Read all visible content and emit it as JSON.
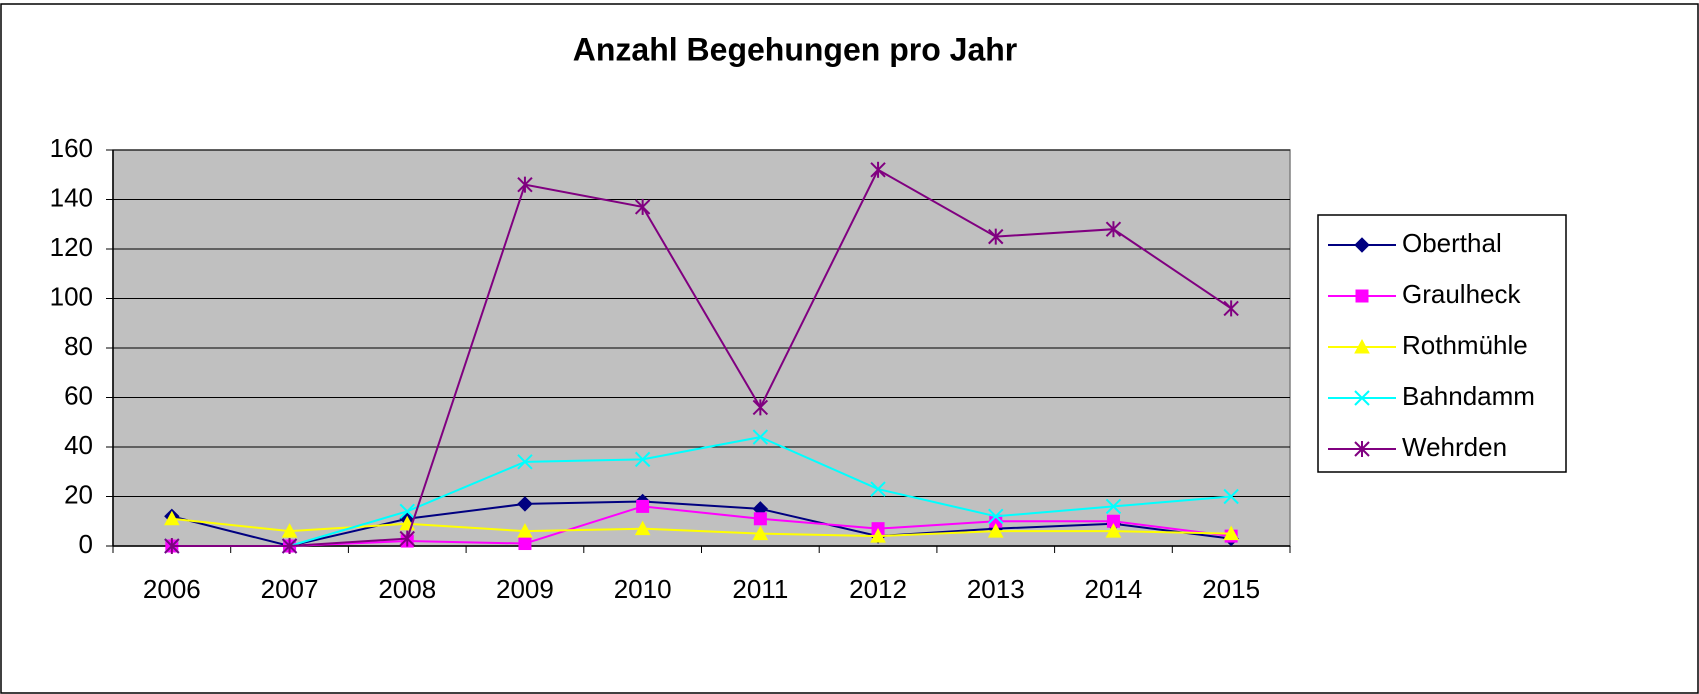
{
  "chart_data": {
    "type": "line",
    "title": "Anzahl Begehungen pro Jahr",
    "categories": [
      "2006",
      "2007",
      "2008",
      "2009",
      "2010",
      "2011",
      "2012",
      "2013",
      "2014",
      "2015"
    ],
    "series": [
      {
        "name": "Oberthal",
        "color": "#000080",
        "marker": "diamond",
        "values": [
          12,
          0,
          11,
          17,
          18,
          15,
          4,
          7,
          9,
          3
        ]
      },
      {
        "name": "Graulheck",
        "color": "#ff00ff",
        "marker": "square",
        "values": [
          0,
          0,
          2,
          1,
          16,
          11,
          7,
          10,
          10,
          4
        ]
      },
      {
        "name": "Rothmühle",
        "color": "#ffff00",
        "marker": "triangle",
        "values": [
          11,
          6,
          9,
          6,
          7,
          5,
          4,
          6,
          6,
          5
        ]
      },
      {
        "name": "Bahndamm",
        "color": "#00ffff",
        "marker": "x",
        "values": [
          0,
          0,
          14,
          34,
          35,
          44,
          23,
          12,
          16,
          20
        ]
      },
      {
        "name": "Wehrden",
        "color": "#800080",
        "marker": "asterisk",
        "values": [
          0,
          0,
          3,
          146,
          137,
          56,
          152,
          125,
          128,
          96
        ]
      }
    ],
    "ylim": [
      0,
      160
    ],
    "yticks": [
      0,
      20,
      40,
      60,
      80,
      100,
      120,
      140,
      160
    ],
    "grid": true,
    "plot_background": "#c0c0c0",
    "legend": "right"
  }
}
